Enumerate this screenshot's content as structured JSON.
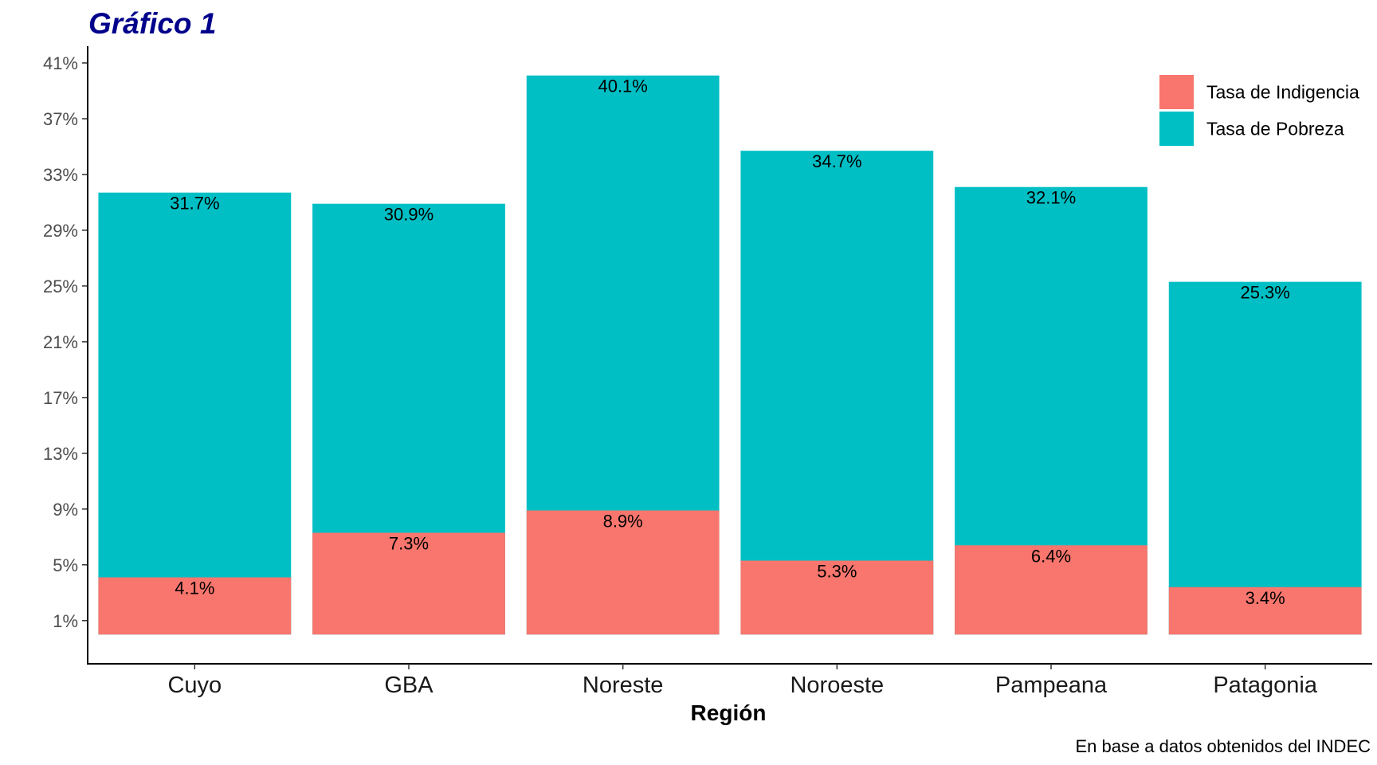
{
  "chart_data": {
    "type": "bar",
    "title": "Gráfico 1",
    "xlabel": "Región",
    "ylabel": "",
    "caption": "En base a datos obtenidos del INDEC",
    "categories": [
      "Cuyo",
      "GBA",
      "Noreste",
      "Noroeste",
      "Pampeana",
      "Patagonia"
    ],
    "series": [
      {
        "name": "Tasa de Indigencia",
        "color": "#f8766d",
        "values": [
          4.1,
          7.3,
          8.9,
          5.3,
          6.4,
          3.4
        ],
        "labels": [
          "4.1%",
          "7.3%",
          "8.9%",
          "5.3%",
          "6.4%",
          "3.4%"
        ]
      },
      {
        "name": "Tasa de Pobreza",
        "color": "#00bfc4",
        "values": [
          31.7,
          30.9,
          40.1,
          34.7,
          32.1,
          25.3
        ],
        "labels": [
          "31.7%",
          "30.9%",
          "40.1%",
          "34.7%",
          "32.1%",
          "25.3%"
        ]
      }
    ],
    "yticks": [
      1,
      5,
      9,
      13,
      17,
      21,
      25,
      29,
      33,
      37,
      41
    ],
    "ytick_labels": [
      "1%",
      "5%",
      "9%",
      "13%",
      "17%",
      "21%",
      "25%",
      "29%",
      "33%",
      "37%",
      "41%"
    ],
    "ylim": [
      -2.1,
      42.2
    ],
    "bar_base": 0,
    "overlay": true,
    "grid": false,
    "legend_position": "top-right",
    "title_color": "#00008b"
  }
}
